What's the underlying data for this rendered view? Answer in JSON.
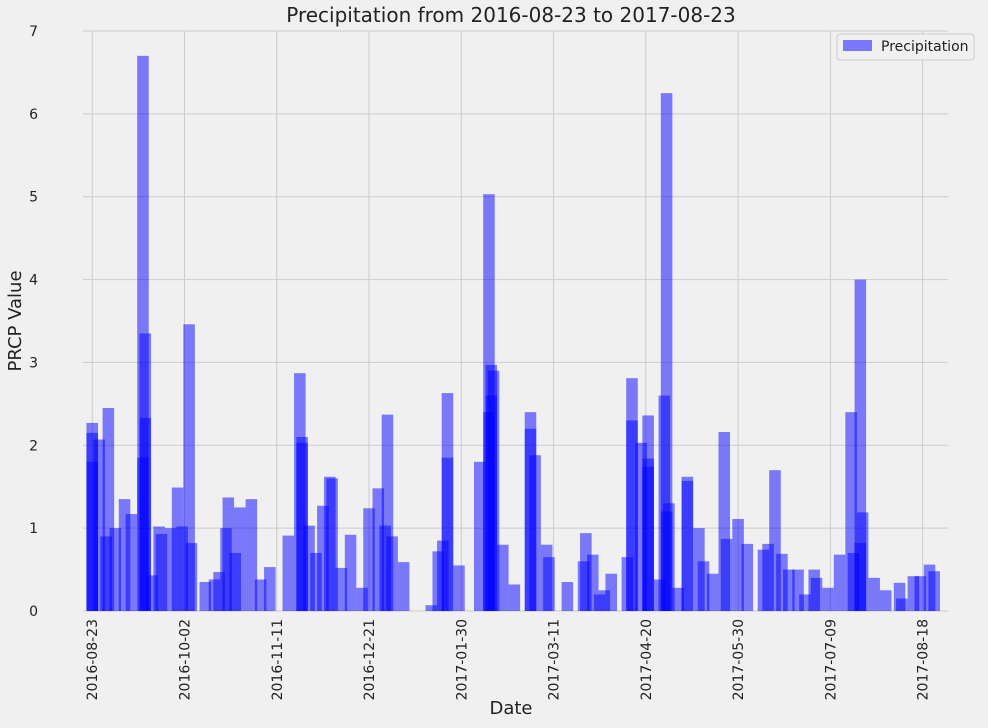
{
  "chart_data": {
    "type": "bar",
    "title": "Precipitation from 2016-08-23 to 2017-08-23",
    "xlabel": "Date",
    "ylabel": "PRCP Value",
    "ylim": [
      0,
      7
    ],
    "yticks": [
      0,
      1,
      2,
      3,
      4,
      5,
      6,
      7
    ],
    "xlim": [
      "2016-08-19",
      "2017-08-29"
    ],
    "xticks": [
      "2016-08-23",
      "2016-10-02",
      "2016-11-11",
      "2016-12-21",
      "2017-01-30",
      "2017-03-11",
      "2017-04-20",
      "2017-05-30",
      "2017-07-09",
      "2017-08-18"
    ],
    "grid": true,
    "legend": {
      "position": "top-right",
      "entries": [
        "Precipitation"
      ]
    },
    "bar_color": "#0000ff",
    "bar_alpha": 0.5,
    "background": "#f0f0f0",
    "series": [
      {
        "name": "Precipitation",
        "points": [
          [
            "2016-08-23",
            1.8
          ],
          [
            "2016-08-23",
            2.27
          ],
          [
            "2016-08-23",
            2.15
          ],
          [
            "2016-08-26",
            2.07
          ],
          [
            "2016-08-29",
            0.9
          ],
          [
            "2016-08-30",
            2.45
          ],
          [
            "2016-09-02",
            1.0
          ],
          [
            "2016-09-06",
            1.35
          ],
          [
            "2016-09-09",
            1.17
          ],
          [
            "2016-09-14",
            6.7
          ],
          [
            "2016-09-14",
            1.85
          ],
          [
            "2016-09-15",
            3.35
          ],
          [
            "2016-09-15",
            2.33
          ],
          [
            "2016-09-18",
            0.43
          ],
          [
            "2016-09-21",
            1.02
          ],
          [
            "2016-09-22",
            0.93
          ],
          [
            "2016-09-26",
            1.0
          ],
          [
            "2016-09-29",
            1.49
          ],
          [
            "2016-10-01",
            1.02
          ],
          [
            "2016-10-04",
            3.46
          ],
          [
            "2016-10-05",
            0.82
          ],
          [
            "2016-10-11",
            0.35
          ],
          [
            "2016-10-15",
            0.38
          ],
          [
            "2016-10-17",
            0.47
          ],
          [
            "2016-10-20",
            1.0
          ],
          [
            "2016-10-21",
            1.37
          ],
          [
            "2016-10-24",
            0.7
          ],
          [
            "2016-10-26",
            1.25
          ],
          [
            "2016-10-31",
            1.35
          ],
          [
            "2016-11-04",
            0.38
          ],
          [
            "2016-11-08",
            0.53
          ],
          [
            "2016-11-16",
            0.91
          ],
          [
            "2016-11-21",
            2.87
          ],
          [
            "2016-11-22",
            2.1
          ],
          [
            "2016-11-22",
            2.03
          ],
          [
            "2016-11-25",
            1.03
          ],
          [
            "2016-11-28",
            0.7
          ],
          [
            "2016-12-01",
            1.27
          ],
          [
            "2016-12-04",
            1.62
          ],
          [
            "2016-12-05",
            1.6
          ],
          [
            "2016-12-09",
            0.52
          ],
          [
            "2016-12-13",
            0.92
          ],
          [
            "2016-12-18",
            0.28
          ],
          [
            "2016-12-21",
            1.24
          ],
          [
            "2016-12-25",
            1.48
          ],
          [
            "2016-12-28",
            1.03
          ],
          [
            "2016-12-29",
            2.37
          ],
          [
            "2016-12-31",
            0.9
          ],
          [
            "2017-01-05",
            0.59
          ],
          [
            "2017-01-17",
            0.07
          ],
          [
            "2017-01-20",
            0.72
          ],
          [
            "2017-01-22",
            0.85
          ],
          [
            "2017-01-24",
            2.63
          ],
          [
            "2017-01-24",
            1.85
          ],
          [
            "2017-01-29",
            0.55
          ],
          [
            "2017-02-07",
            1.8
          ],
          [
            "2017-02-11",
            5.03
          ],
          [
            "2017-02-11",
            2.4
          ],
          [
            "2017-02-12",
            2.97
          ],
          [
            "2017-02-12",
            2.6
          ],
          [
            "2017-02-13",
            2.9
          ],
          [
            "2017-02-17",
            0.8
          ],
          [
            "2017-02-22",
            0.32
          ],
          [
            "2017-03-01",
            2.4
          ],
          [
            "2017-03-01",
            2.2
          ],
          [
            "2017-03-03",
            1.88
          ],
          [
            "2017-03-08",
            0.8
          ],
          [
            "2017-03-09",
            0.65
          ],
          [
            "2017-03-17",
            0.35
          ],
          [
            "2017-03-24",
            0.6
          ],
          [
            "2017-03-25",
            0.94
          ],
          [
            "2017-03-28",
            0.68
          ],
          [
            "2017-03-31",
            0.2
          ],
          [
            "2017-04-02",
            0.25
          ],
          [
            "2017-04-05",
            0.45
          ],
          [
            "2017-04-12",
            0.65
          ],
          [
            "2017-04-14",
            2.81
          ],
          [
            "2017-04-14",
            2.3
          ],
          [
            "2017-04-18",
            2.03
          ],
          [
            "2017-04-21",
            2.36
          ],
          [
            "2017-04-21",
            1.84
          ],
          [
            "2017-04-21",
            1.74
          ],
          [
            "2017-04-26",
            0.38
          ],
          [
            "2017-04-28",
            2.6
          ],
          [
            "2017-04-29",
            6.25
          ],
          [
            "2017-04-29",
            1.2
          ],
          [
            "2017-04-30",
            1.3
          ],
          [
            "2017-05-04",
            0.28
          ],
          [
            "2017-05-08",
            1.62
          ],
          [
            "2017-05-08",
            1.57
          ],
          [
            "2017-05-13",
            1.0
          ],
          [
            "2017-05-15",
            0.6
          ],
          [
            "2017-05-19",
            0.45
          ],
          [
            "2017-05-24",
            2.16
          ],
          [
            "2017-05-25",
            0.87
          ],
          [
            "2017-05-30",
            1.11
          ],
          [
            "2017-06-03",
            0.81
          ],
          [
            "2017-06-10",
            0.74
          ],
          [
            "2017-06-12",
            0.81
          ],
          [
            "2017-06-15",
            1.7
          ],
          [
            "2017-06-18",
            0.69
          ],
          [
            "2017-06-21",
            0.5
          ],
          [
            "2017-06-25",
            0.5
          ],
          [
            "2017-06-28",
            0.2
          ],
          [
            "2017-07-02",
            0.5
          ],
          [
            "2017-07-03",
            0.4
          ],
          [
            "2017-07-08",
            0.28
          ],
          [
            "2017-07-13",
            0.68
          ],
          [
            "2017-07-18",
            2.4
          ],
          [
            "2017-07-19",
            0.7
          ],
          [
            "2017-07-22",
            4.0
          ],
          [
            "2017-07-22",
            0.82
          ],
          [
            "2017-07-23",
            1.19
          ],
          [
            "2017-07-28",
            0.4
          ],
          [
            "2017-08-02",
            0.25
          ],
          [
            "2017-08-08",
            0.34
          ],
          [
            "2017-08-09",
            0.15
          ],
          [
            "2017-08-14",
            0.42
          ],
          [
            "2017-08-17",
            0.42
          ],
          [
            "2017-08-21",
            0.56
          ],
          [
            "2017-08-23",
            0.48
          ]
        ]
      }
    ]
  }
}
